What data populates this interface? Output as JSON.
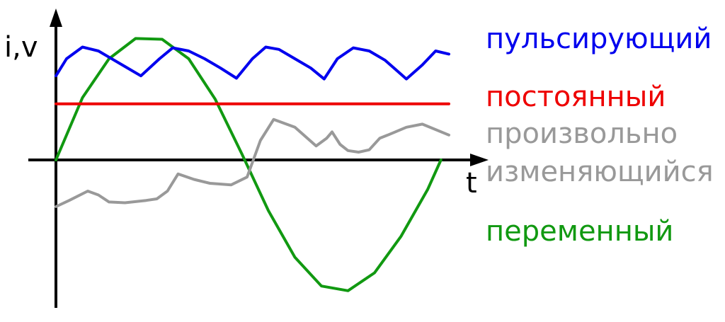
{
  "chart_data": {
    "type": "line",
    "ylabel": "i,v",
    "xlabel": "t",
    "grid": false,
    "legend": "right",
    "xlim": [
      0,
      10
    ],
    "ylim": [
      -1.8,
      1.9
    ],
    "series": [
      {
        "name": "пульсирующий",
        "color": "#0000ee",
        "x": [
          0,
          0.2,
          0.5,
          0.8,
          1.0,
          1.3,
          1.6,
          1.95,
          2.2,
          2.5,
          2.8,
          3.1,
          3.4,
          3.7,
          3.95,
          4.2,
          4.5,
          4.8,
          5.05,
          5.3,
          5.6,
          5.9,
          6.2,
          6.4,
          6.6,
          6.9,
          7.15,
          7.4
        ],
        "values": [
          1.08,
          1.3,
          1.45,
          1.4,
          1.32,
          1.2,
          1.08,
          1.3,
          1.44,
          1.4,
          1.3,
          1.18,
          1.05,
          1.3,
          1.45,
          1.42,
          1.3,
          1.18,
          1.04,
          1.3,
          1.44,
          1.4,
          1.28,
          1.16,
          1.04,
          1.22,
          1.4,
          1.36
        ]
      },
      {
        "name": "постоянный",
        "color": "#ee0000",
        "x": [
          0,
          7.4
        ],
        "values": [
          0.72,
          0.72
        ]
      },
      {
        "name": "произвольно изменяющийся",
        "color": "#999999",
        "x": [
          0,
          0.25,
          0.6,
          0.8,
          1.0,
          1.3,
          1.7,
          1.9,
          2.1,
          2.3,
          2.6,
          2.9,
          3.3,
          3.6,
          3.85,
          4.1,
          4.5,
          4.9,
          5.1,
          5.2,
          5.35,
          5.5,
          5.7,
          5.9,
          6.1,
          6.25,
          6.6,
          6.9,
          7.4
        ],
        "values": [
          -0.6,
          -0.52,
          -0.4,
          -0.45,
          -0.54,
          -0.55,
          -0.52,
          -0.5,
          -0.4,
          -0.18,
          -0.25,
          -0.3,
          -0.32,
          -0.22,
          0.25,
          0.52,
          0.42,
          0.18,
          0.28,
          0.36,
          0.2,
          0.12,
          0.1,
          0.13,
          0.28,
          0.32,
          0.42,
          0.46,
          0.32
        ]
      },
      {
        "name": "переменный",
        "color": "#119911",
        "x": [
          0,
          0.5,
          1.0,
          1.5,
          2.0,
          2.5,
          3.0,
          3.5,
          4.0,
          4.5,
          5.0,
          5.5,
          6.0,
          6.5,
          7.0,
          7.25
        ],
        "values": [
          0,
          0.8,
          1.3,
          1.56,
          1.55,
          1.3,
          0.78,
          0.08,
          -0.65,
          -1.25,
          -1.62,
          -1.68,
          -1.45,
          -0.98,
          -0.38,
          0.0
        ]
      }
    ]
  }
}
